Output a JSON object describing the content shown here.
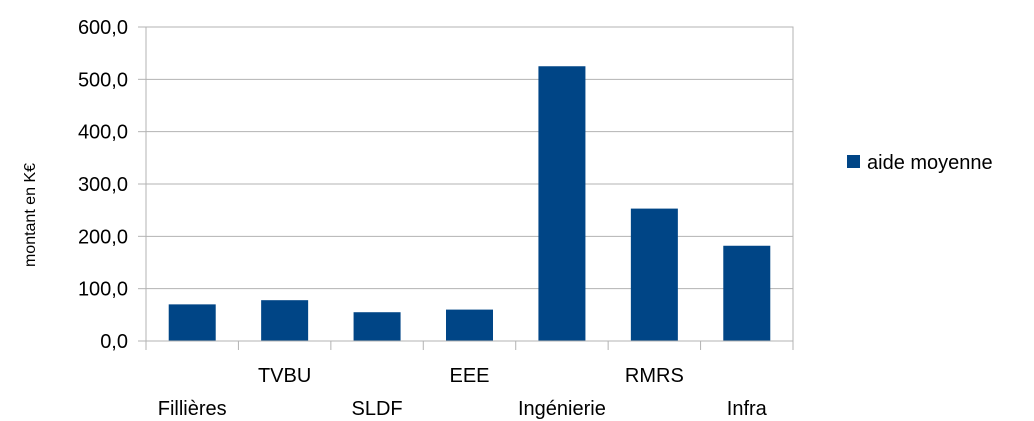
{
  "chart_data": {
    "type": "bar",
    "categories": [
      "Fillières",
      "TVBU",
      "SLDF",
      "EEE",
      "Ingénierie",
      "RMRS",
      "Infra"
    ],
    "series": [
      {
        "name": "aide moyenne",
        "values": [
          70,
          78,
          55,
          60,
          525,
          253,
          182
        ]
      }
    ],
    "ylabel": "montant en K€",
    "xlabel": "",
    "ylim": [
      0,
      600
    ],
    "yticks": [
      "0,0",
      "100,0",
      "200,0",
      "300,0",
      "400,0",
      "500,0",
      "600,0"
    ],
    "grid": true,
    "legend": "right",
    "colors": {
      "bar": "#004586",
      "grid": "#b3b3b3",
      "axis": "#b3b3b3"
    }
  }
}
